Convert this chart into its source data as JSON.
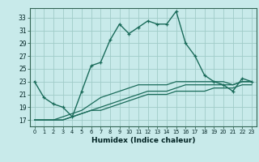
{
  "xlabel": "Humidex (Indice chaleur)",
  "bg_color": "#c8eaea",
  "grid_color": "#a0ccc8",
  "line_color": "#1a6b5a",
  "yticks": [
    17,
    19,
    21,
    23,
    25,
    27,
    29,
    31,
    33
  ],
  "xticks": [
    0,
    1,
    2,
    3,
    4,
    5,
    6,
    7,
    8,
    9,
    10,
    11,
    12,
    13,
    14,
    15,
    16,
    17,
    18,
    19,
    20,
    21,
    22,
    23
  ],
  "xlim": [
    -0.5,
    23.5
  ],
  "ylim": [
    16.0,
    34.5
  ],
  "line1_x": [
    0,
    1,
    2,
    3,
    4,
    5,
    6,
    7,
    8,
    9,
    10,
    11,
    12,
    13,
    14,
    15,
    16,
    17,
    18,
    19,
    20,
    21,
    22,
    23
  ],
  "line1_y": [
    23,
    20.5,
    19.5,
    19,
    17.5,
    21.5,
    25.5,
    26,
    29.5,
    32,
    30.5,
    31.5,
    32.5,
    32,
    32,
    34,
    29,
    27,
    24,
    23,
    22.5,
    21.5,
    23.5,
    23
  ],
  "line2_x": [
    0,
    1,
    2,
    3,
    4,
    5,
    6,
    7,
    8,
    9,
    10,
    11,
    12,
    13,
    14,
    15,
    16,
    17,
    18,
    19,
    20,
    21,
    22,
    23
  ],
  "line2_y": [
    17,
    17,
    17,
    17,
    17.5,
    18.0,
    18.5,
    18.5,
    19.0,
    19.5,
    20.0,
    20.5,
    21.0,
    21.0,
    21.0,
    21.5,
    21.5,
    21.5,
    21.5,
    22.0,
    22.0,
    22.0,
    22.5,
    22.5
  ],
  "line3_x": [
    0,
    1,
    2,
    3,
    4,
    5,
    6,
    7,
    8,
    9,
    10,
    11,
    12,
    13,
    14,
    15,
    16,
    17,
    18,
    19,
    20,
    21,
    22,
    23
  ],
  "line3_y": [
    17,
    17,
    17,
    17,
    17.5,
    18.0,
    18.5,
    19.0,
    19.5,
    20.0,
    20.5,
    21.0,
    21.5,
    21.5,
    21.5,
    22.0,
    22.5,
    22.5,
    22.5,
    22.5,
    22.5,
    22.5,
    23.0,
    23.0
  ],
  "line4_x": [
    0,
    1,
    2,
    3,
    4,
    5,
    6,
    7,
    8,
    9,
    10,
    11,
    12,
    13,
    14,
    15,
    16,
    17,
    18,
    19,
    20,
    21,
    22,
    23
  ],
  "line4_y": [
    17,
    17,
    17,
    17.5,
    18.0,
    18.5,
    19.5,
    20.5,
    21.0,
    21.5,
    22.0,
    22.5,
    22.5,
    22.5,
    22.5,
    23.0,
    23.0,
    23.0,
    23.0,
    23.0,
    23.0,
    22.5,
    23.0,
    23.0
  ]
}
